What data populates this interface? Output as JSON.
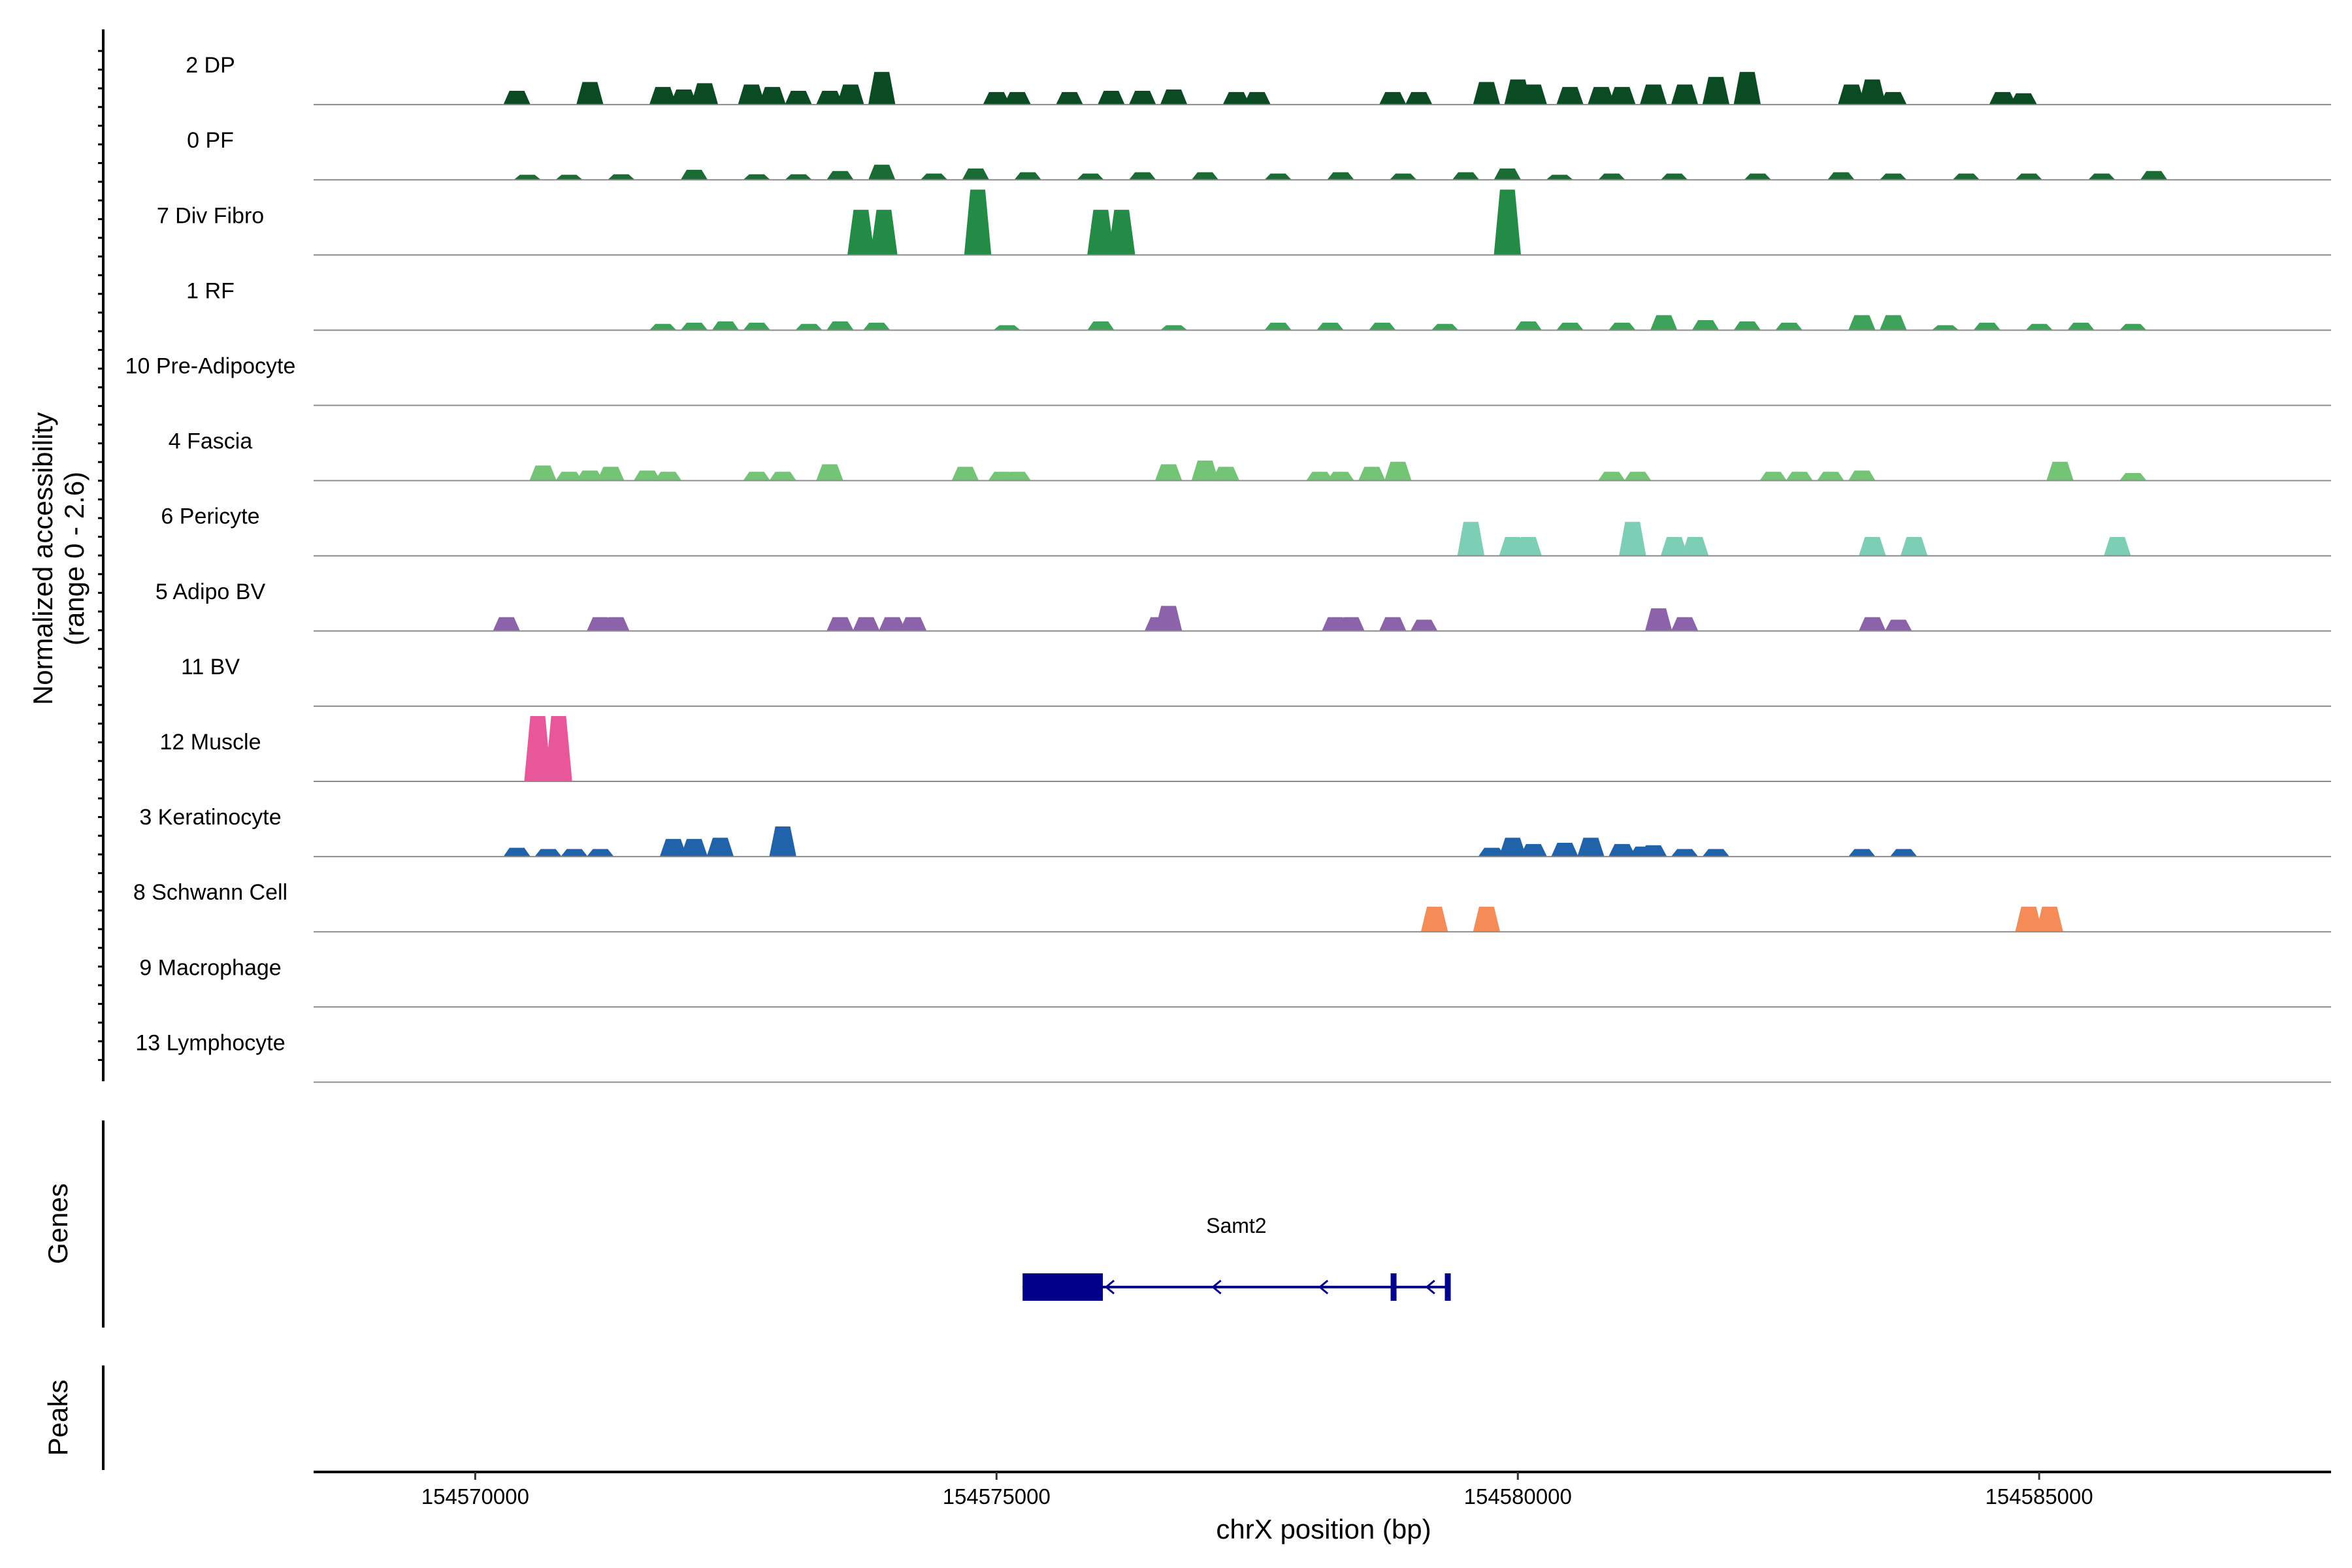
{
  "chart_data": {
    "type": "area",
    "chromosome": "chrX",
    "xlabel": "chrX position (bp)",
    "ylabel_line1": "Normalized accessibility",
    "ylabel_line2": "(range 0 - 2.6)",
    "y_range": [
      0,
      2.6
    ],
    "xlim": [
      154568450,
      154587800
    ],
    "x_ticks": [
      154570000,
      154575000,
      154580000,
      154585000
    ],
    "x_tick_labels": [
      "154570000",
      "154575000",
      "154580000",
      "154585000"
    ],
    "genes_label": "Genes",
    "peaks_label": "Peaks",
    "tracks": [
      {
        "name": "2 DP",
        "color": "#0b4b23",
        "peaks": [
          [
            154570400,
            0.55
          ],
          [
            154571100,
            0.9
          ],
          [
            154571800,
            0.7
          ],
          [
            154572000,
            0.6
          ],
          [
            154572200,
            0.85
          ],
          [
            154572650,
            0.8
          ],
          [
            154572850,
            0.7
          ],
          [
            154573100,
            0.55
          ],
          [
            154573400,
            0.55
          ],
          [
            154573600,
            0.8
          ],
          [
            154573900,
            1.3
          ],
          [
            154575000,
            0.5
          ],
          [
            154575200,
            0.5
          ],
          [
            154575700,
            0.5
          ],
          [
            154576100,
            0.55
          ],
          [
            154576400,
            0.55
          ],
          [
            154576700,
            0.6
          ],
          [
            154577300,
            0.5
          ],
          [
            154577500,
            0.5
          ],
          [
            154578800,
            0.5
          ],
          [
            154579050,
            0.5
          ],
          [
            154579700,
            0.9
          ],
          [
            154580000,
            1.0
          ],
          [
            154580150,
            0.8
          ],
          [
            154580500,
            0.7
          ],
          [
            154580800,
            0.7
          ],
          [
            154581000,
            0.7
          ],
          [
            154581300,
            0.8
          ],
          [
            154581600,
            0.8
          ],
          [
            154581900,
            1.1
          ],
          [
            154582200,
            1.3
          ],
          [
            154583200,
            0.8
          ],
          [
            154583400,
            1.0
          ],
          [
            154583600,
            0.5
          ],
          [
            154584650,
            0.5
          ],
          [
            154584850,
            0.45
          ]
        ]
      },
      {
        "name": "0 PF",
        "color": "#1b6b35",
        "peaks": [
          [
            154570500,
            0.2
          ],
          [
            154570900,
            0.2
          ],
          [
            154571400,
            0.22
          ],
          [
            154572100,
            0.4
          ],
          [
            154572700,
            0.22
          ],
          [
            154573100,
            0.22
          ],
          [
            154573500,
            0.35
          ],
          [
            154573900,
            0.6
          ],
          [
            154574400,
            0.25
          ],
          [
            154574800,
            0.45
          ],
          [
            154575300,
            0.3
          ],
          [
            154575900,
            0.25
          ],
          [
            154576400,
            0.3
          ],
          [
            154577000,
            0.3
          ],
          [
            154577700,
            0.25
          ],
          [
            154578300,
            0.3
          ],
          [
            154578900,
            0.25
          ],
          [
            154579500,
            0.3
          ],
          [
            154579900,
            0.45
          ],
          [
            154580400,
            0.2
          ],
          [
            154580900,
            0.25
          ],
          [
            154581500,
            0.25
          ],
          [
            154582300,
            0.25
          ],
          [
            154583100,
            0.3
          ],
          [
            154583600,
            0.25
          ],
          [
            154584300,
            0.25
          ],
          [
            154584900,
            0.25
          ],
          [
            154585600,
            0.25
          ],
          [
            154586100,
            0.35
          ]
        ]
      },
      {
        "name": "7 Div Fibro",
        "color": "#238b45",
        "peaks": [
          [
            154573700,
            1.8
          ],
          [
            154573920,
            1.8
          ],
          [
            154574820,
            2.6
          ],
          [
            154576000,
            1.8
          ],
          [
            154576200,
            1.8
          ],
          [
            154579900,
            2.6
          ]
        ]
      },
      {
        "name": "1 RF",
        "color": "#3da35a",
        "peaks": [
          [
            154571800,
            0.25
          ],
          [
            154572100,
            0.3
          ],
          [
            154572400,
            0.35
          ],
          [
            154572700,
            0.3
          ],
          [
            154573200,
            0.25
          ],
          [
            154573500,
            0.35
          ],
          [
            154573850,
            0.3
          ],
          [
            154575100,
            0.2
          ],
          [
            154576000,
            0.35
          ],
          [
            154576700,
            0.2
          ],
          [
            154577700,
            0.3
          ],
          [
            154578200,
            0.3
          ],
          [
            154578700,
            0.3
          ],
          [
            154579300,
            0.25
          ],
          [
            154580100,
            0.35
          ],
          [
            154580500,
            0.3
          ],
          [
            154581000,
            0.3
          ],
          [
            154581400,
            0.6
          ],
          [
            154581800,
            0.4
          ],
          [
            154582200,
            0.35
          ],
          [
            154582600,
            0.3
          ],
          [
            154583300,
            0.6
          ],
          [
            154583600,
            0.6
          ],
          [
            154584100,
            0.2
          ],
          [
            154584500,
            0.3
          ],
          [
            154585000,
            0.25
          ],
          [
            154585400,
            0.3
          ],
          [
            154585900,
            0.25
          ]
        ]
      },
      {
        "name": "10 Pre-Adipocyte",
        "color": "#57b867",
        "peaks": []
      },
      {
        "name": "4 Fascia",
        "color": "#74c476",
        "peaks": [
          [
            154570650,
            0.6
          ],
          [
            154570900,
            0.35
          ],
          [
            154571100,
            0.4
          ],
          [
            154571300,
            0.55
          ],
          [
            154571650,
            0.4
          ],
          [
            154571850,
            0.35
          ],
          [
            154572700,
            0.35
          ],
          [
            154572950,
            0.35
          ],
          [
            154573400,
            0.65
          ],
          [
            154574700,
            0.55
          ],
          [
            154575050,
            0.35
          ],
          [
            154575200,
            0.35
          ],
          [
            154576650,
            0.65
          ],
          [
            154577000,
            0.8
          ],
          [
            154577200,
            0.55
          ],
          [
            154578100,
            0.35
          ],
          [
            154578300,
            0.35
          ],
          [
            154578600,
            0.55
          ],
          [
            154578850,
            0.75
          ],
          [
            154580900,
            0.35
          ],
          [
            154581150,
            0.35
          ],
          [
            154582450,
            0.35
          ],
          [
            154582700,
            0.35
          ],
          [
            154583000,
            0.35
          ],
          [
            154583300,
            0.4
          ],
          [
            154585200,
            0.75
          ],
          [
            154585900,
            0.3
          ]
        ]
      },
      {
        "name": "6 Pericyte",
        "color": "#7ccfb4",
        "peaks": [
          [
            154579550,
            1.35
          ],
          [
            154579950,
            0.75
          ],
          [
            154580100,
            0.75
          ],
          [
            154581100,
            1.35
          ],
          [
            154581500,
            0.75
          ],
          [
            154581700,
            0.75
          ],
          [
            154583400,
            0.75
          ],
          [
            154583800,
            0.75
          ],
          [
            154585750,
            0.75
          ]
        ]
      },
      {
        "name": "5 Adipo BV",
        "color": "#8c63aa",
        "peaks": [
          [
            154570300,
            0.55
          ],
          [
            154571200,
            0.55
          ],
          [
            154571350,
            0.55
          ],
          [
            154573500,
            0.55
          ],
          [
            154573750,
            0.55
          ],
          [
            154574000,
            0.55
          ],
          [
            154574200,
            0.55
          ],
          [
            154576550,
            0.55
          ],
          [
            154576650,
            1.0
          ],
          [
            154578250,
            0.55
          ],
          [
            154578400,
            0.55
          ],
          [
            154578800,
            0.55
          ],
          [
            154579100,
            0.45
          ],
          [
            154581350,
            0.9
          ],
          [
            154581600,
            0.55
          ],
          [
            154583400,
            0.55
          ],
          [
            154583650,
            0.45
          ]
        ]
      },
      {
        "name": "11 BV",
        "color": "#6c4aa0",
        "peaks": []
      },
      {
        "name": "12 Muscle",
        "color": "#e9579b",
        "peaks": [
          [
            154570600,
            2.6
          ],
          [
            154570800,
            2.6
          ]
        ]
      },
      {
        "name": "3 Keratinocyte",
        "color": "#2063ab",
        "peaks": [
          [
            154570400,
            0.35
          ],
          [
            154570700,
            0.3
          ],
          [
            154570950,
            0.3
          ],
          [
            154571200,
            0.3
          ],
          [
            154571900,
            0.7
          ],
          [
            154572100,
            0.7
          ],
          [
            154572350,
            0.75
          ],
          [
            154572950,
            1.2
          ],
          [
            154579750,
            0.35
          ],
          [
            154579950,
            0.75
          ],
          [
            154580150,
            0.5
          ],
          [
            154580450,
            0.55
          ],
          [
            154580700,
            0.75
          ],
          [
            154581000,
            0.5
          ],
          [
            154581200,
            0.4
          ],
          [
            154581300,
            0.45
          ],
          [
            154581600,
            0.3
          ],
          [
            154581900,
            0.3
          ],
          [
            154583300,
            0.3
          ],
          [
            154583700,
            0.3
          ]
        ]
      },
      {
        "name": "8 Schwann Cell",
        "color": "#f58b56",
        "peaks": [
          [
            154579200,
            1.0
          ],
          [
            154579700,
            1.0
          ],
          [
            154584900,
            1.0
          ],
          [
            154585100,
            1.0
          ]
        ]
      },
      {
        "name": "9 Macrophage",
        "color": "#e0685a",
        "peaks": []
      },
      {
        "name": "13 Lymphocyte",
        "color": "#c23b3b",
        "peaks": []
      }
    ],
    "gene": {
      "name": "Samt2",
      "strand": "-",
      "start": 154575250,
      "end": 154579350,
      "color": "#00008b",
      "exons": [
        [
          154575250,
          154576020
        ],
        [
          154578780,
          154578830
        ],
        [
          154579300,
          154579350
        ]
      ]
    }
  }
}
